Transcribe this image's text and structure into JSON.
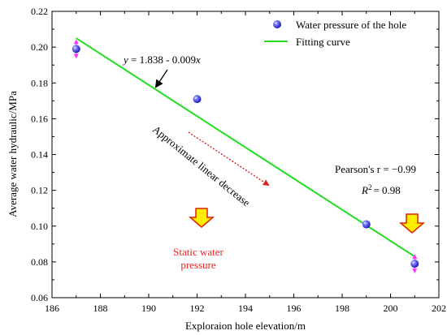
{
  "chart_data": {
    "type": "scatter",
    "xlabel": "Exploraion hole elevation/m",
    "ylabel": "Average water hydraulic/MPa",
    "xlim": [
      186,
      202
    ],
    "ylim": [
      0.06,
      0.22
    ],
    "x_ticks": [
      "186",
      "188",
      "190",
      "192",
      "194",
      "196",
      "198",
      "200",
      "202"
    ],
    "y_ticks": [
      "0.06",
      "0.08",
      "0.10",
      "0.12",
      "0.14",
      "0.16",
      "0.18",
      "0.20",
      "0.22"
    ],
    "series": [
      {
        "name": "Water pressure of the hole",
        "kind": "points",
        "color": "#2222dd",
        "points": [
          {
            "x": 187.0,
            "y": 0.199
          },
          {
            "x": 192.0,
            "y": 0.171
          },
          {
            "x": 199.0,
            "y": 0.101
          },
          {
            "x": 201.0,
            "y": 0.079
          }
        ]
      },
      {
        "name": "Fitting curve",
        "kind": "line",
        "color": "#22dd22",
        "points": [
          {
            "x": 187.0,
            "y": 0.205
          },
          {
            "x": 201.0,
            "y": 0.083
          }
        ]
      }
    ],
    "legend_position": "top-right",
    "error_bar_color": "#ff33ff",
    "annotations": {
      "equation": "y = 1.838 - 0.009x",
      "trend": "Approximate linear decrease",
      "pearson": "Pearson's r = −0.99",
      "r2_value": "2 = 0.98",
      "static_line1": "Static water",
      "static_line2": "pressure"
    },
    "colors": {
      "trend_arrow": "#dd2222",
      "static_text": "#ee2222",
      "down_arrow_fill": "#ffee00",
      "down_arrow_stroke": "#dd2200"
    }
  }
}
